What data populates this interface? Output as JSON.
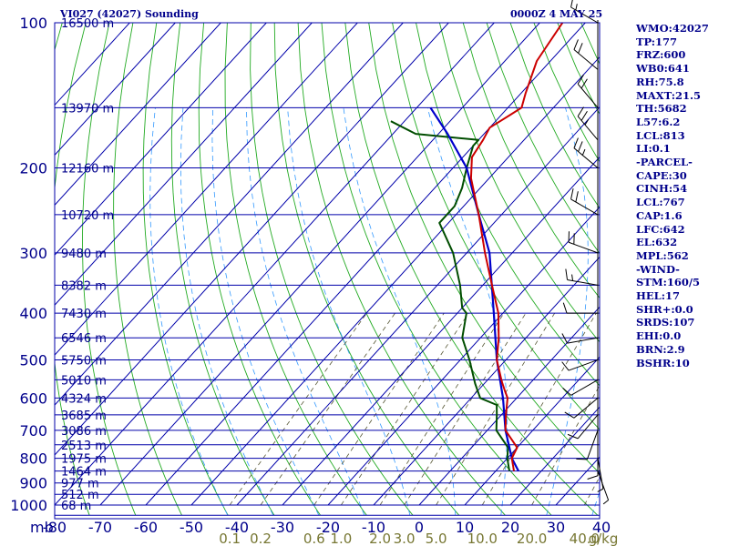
{
  "title_left": "VI027 (42027) Sounding",
  "title_right": "0000Z  4 MAY 25",
  "stats": [
    "WMO:42027",
    "TP:177",
    "FRZ:600",
    "WB0:641",
    "RH:75.8",
    "MAXT:21.5",
    "TH:5682",
    "L57:6.2",
    "LCL:813",
    "LI:0.1",
    "-PARCEL-",
    "CAPE:30",
    "CINH:54",
    "LCL:767",
    "CAP:1.6",
    "LFC:642",
    "EL:632",
    "MPL:562",
    "-WIND-",
    "STM:160/5",
    "HEL:17",
    "SHR+:0.0",
    "SRDS:107",
    "EHI:0.0",
    "BRN:2.9",
    "BSHR:10"
  ],
  "chart_data": {
    "type": "skew-t sounding",
    "pressure_labels": [
      "100",
      "200",
      "300",
      "400",
      "500",
      "600",
      "700",
      "800",
      "900",
      "1000"
    ],
    "height_levels": [
      {
        "p": 100,
        "label": "16500 m"
      },
      {
        "p": 150,
        "label": "13970 m"
      },
      {
        "p": 200,
        "label": "12160 m"
      },
      {
        "p": 250,
        "label": "10720 m"
      },
      {
        "p": 300,
        "label": "9480 m"
      },
      {
        "p": 350,
        "label": "8382 m"
      },
      {
        "p": 400,
        "label": "7430 m"
      },
      {
        "p": 450,
        "label": "6546 m"
      },
      {
        "p": 500,
        "label": "5750 m"
      },
      {
        "p": 550,
        "label": "5010 m"
      },
      {
        "p": 600,
        "label": "4324 m"
      },
      {
        "p": 650,
        "label": "3685 m"
      },
      {
        "p": 700,
        "label": "3086 m"
      },
      {
        "p": 750,
        "label": "2513 m"
      },
      {
        "p": 800,
        "label": "1975 m"
      },
      {
        "p": 850,
        "label": "1464 m"
      },
      {
        "p": 900,
        "label": "977 m"
      },
      {
        "p": 950,
        "label": "512 m"
      },
      {
        "p": 1000,
        "label": "68 m"
      }
    ],
    "pressure_unit": "mb",
    "temp_ticks": [
      "-80",
      "-70",
      "-60",
      "-50",
      "-40",
      "-30",
      "-20",
      "-10",
      "0",
      "10",
      "20",
      "30",
      "40"
    ],
    "mixing_ratio_labels": [
      "0.1",
      "0.2",
      "0.6",
      "1.0",
      "2.0",
      "3.0",
      "5.0",
      "10.0",
      "20.0",
      "40.0",
      "g/kg"
    ],
    "temperature": [
      [
        850,
        14
      ],
      [
        800,
        11
      ],
      [
        760,
        10
      ],
      [
        700,
        4
      ],
      [
        650,
        1
      ],
      [
        600,
        -2
      ],
      [
        580,
        -4
      ],
      [
        560,
        -6
      ],
      [
        550,
        -7
      ],
      [
        500,
        -12
      ],
      [
        450,
        -16
      ],
      [
        400,
        -21
      ],
      [
        350,
        -28
      ],
      [
        300,
        -36
      ],
      [
        250,
        -45
      ],
      [
        210,
        -54
      ],
      [
        190,
        -58
      ],
      [
        175,
        -59
      ],
      [
        165,
        -60
      ],
      [
        155,
        -58
      ],
      [
        150,
        -57
      ],
      [
        140,
        -59
      ],
      [
        120,
        -63
      ],
      [
        100,
        -65
      ]
    ],
    "dewpoint": [
      [
        850,
        13
      ],
      [
        800,
        10
      ],
      [
        760,
        8
      ],
      [
        700,
        2
      ],
      [
        650,
        -1
      ],
      [
        620,
        -3
      ],
      [
        600,
        -8
      ],
      [
        560,
        -12
      ],
      [
        500,
        -18
      ],
      [
        450,
        -24
      ],
      [
        400,
        -28
      ],
      [
        390,
        -30
      ],
      [
        350,
        -35
      ],
      [
        300,
        -43
      ],
      [
        260,
        -52
      ],
      [
        250,
        -52
      ],
      [
        240,
        -52
      ],
      [
        220,
        -54
      ],
      [
        200,
        -57
      ],
      [
        180,
        -60
      ],
      [
        175,
        -60
      ],
      [
        170,
        -75
      ],
      [
        160,
        -83
      ]
    ],
    "parcel": [
      [
        850,
        15
      ],
      [
        800,
        11
      ],
      [
        700,
        4
      ],
      [
        600,
        -3
      ],
      [
        500,
        -12
      ],
      [
        400,
        -22
      ],
      [
        300,
        -35
      ],
      [
        250,
        -45
      ],
      [
        200,
        -57
      ],
      [
        170,
        -68
      ],
      [
        150,
        -77
      ]
    ],
    "wind_barbs": [
      [
        850,
        160,
        5
      ],
      [
        800,
        170,
        5
      ],
      [
        750,
        180,
        8
      ],
      [
        700,
        200,
        10
      ],
      [
        650,
        220,
        10
      ],
      [
        600,
        230,
        8
      ],
      [
        550,
        240,
        10
      ],
      [
        500,
        250,
        12
      ],
      [
        450,
        260,
        10
      ],
      [
        400,
        270,
        12
      ],
      [
        350,
        280,
        15
      ],
      [
        300,
        290,
        18
      ],
      [
        250,
        300,
        20
      ],
      [
        200,
        310,
        25
      ],
      [
        175,
        320,
        25
      ],
      [
        150,
        320,
        22
      ],
      [
        125,
        310,
        18
      ],
      [
        100,
        300,
        15
      ]
    ]
  }
}
